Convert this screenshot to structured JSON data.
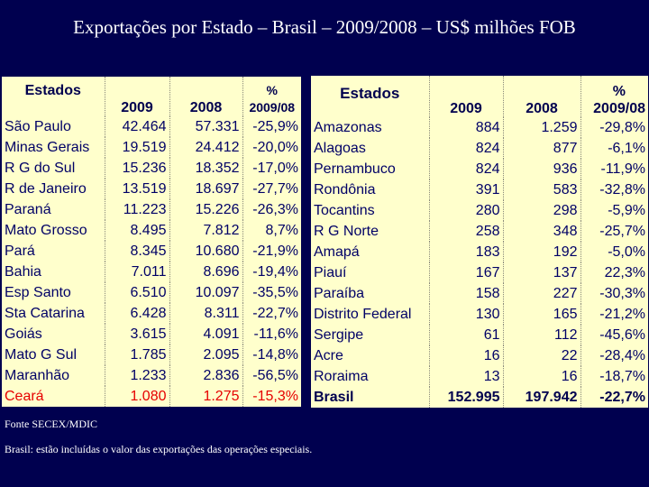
{
  "title": "Exportações por Estado – Brasil – 2009/2008 – US$ milhões FOB",
  "headers": {
    "estados": "Estados",
    "y2009": "2009",
    "y2008": "2008",
    "pct_line1": "%",
    "pct_line2": "2009/08"
  },
  "left_rows": [
    [
      "São Paulo",
      "42.464",
      "57.331",
      "-25,9%"
    ],
    [
      "Minas Gerais",
      "19.519",
      "24.412",
      "-20,0%"
    ],
    [
      "R G do Sul",
      "15.236",
      "18.352",
      "-17,0%"
    ],
    [
      "R de Janeiro",
      "13.519",
      "18.697",
      "-27,7%"
    ],
    [
      "Paraná",
      "11.223",
      "15.226",
      "-26,3%"
    ],
    [
      "Mato Grosso",
      "8.495",
      "7.812",
      "8,7%"
    ],
    [
      "Pará",
      "8.345",
      "10.680",
      "-21,9%"
    ],
    [
      "Bahia",
      "7.011",
      "8.696",
      "-19,4%"
    ],
    [
      "Esp Santo",
      "6.510",
      "10.097",
      "-35,5%"
    ],
    [
      "Sta Catarina",
      "6.428",
      "8.311",
      "-22,7%"
    ],
    [
      "Goiás",
      "3.615",
      "4.091",
      "-11,6%"
    ],
    [
      "Mato G Sul",
      "1.785",
      "2.095",
      "-14,8%"
    ],
    [
      "Maranhão",
      "1.233",
      "2.836",
      "-56,5%"
    ],
    [
      "Ceará",
      "1.080",
      "1.275",
      "-15,3%"
    ]
  ],
  "right_rows": [
    [
      "Amazonas",
      "884",
      "1.259",
      "-29,8%"
    ],
    [
      "Alagoas",
      "824",
      "877",
      "-6,1%"
    ],
    [
      "Pernambuco",
      "824",
      "936",
      "-11,9%"
    ],
    [
      "Rondônia",
      "391",
      "583",
      "-32,8%"
    ],
    [
      "Tocantins",
      "280",
      "298",
      "-5,9%"
    ],
    [
      "R G Norte",
      "258",
      "348",
      "-25,7%"
    ],
    [
      "Amapá",
      "183",
      "192",
      "-5,0%"
    ],
    [
      "Piauí",
      "167",
      "137",
      "22,3%"
    ],
    [
      "Paraíba",
      "158",
      "227",
      "-30,3%"
    ],
    [
      "Distrito Federal",
      "130",
      "165",
      "-21,2%"
    ],
    [
      "Sergipe",
      "61",
      "112",
      "-45,6%"
    ],
    [
      "Acre",
      "16",
      "22",
      "-28,4%"
    ],
    [
      "Roraima",
      "13",
      "16",
      "-18,7%"
    ],
    [
      "Brasil",
      "152.995",
      "197.942",
      "-22,7%"
    ]
  ],
  "source": "Fonte SECEX/MDIC",
  "note": "Brasil:  estão incluídas o valor das exportações das operações especiais.",
  "colors": {
    "background": "#00004f",
    "table_bg": "#ffffcc",
    "text": "#000066",
    "highlight": "#e60000"
  }
}
